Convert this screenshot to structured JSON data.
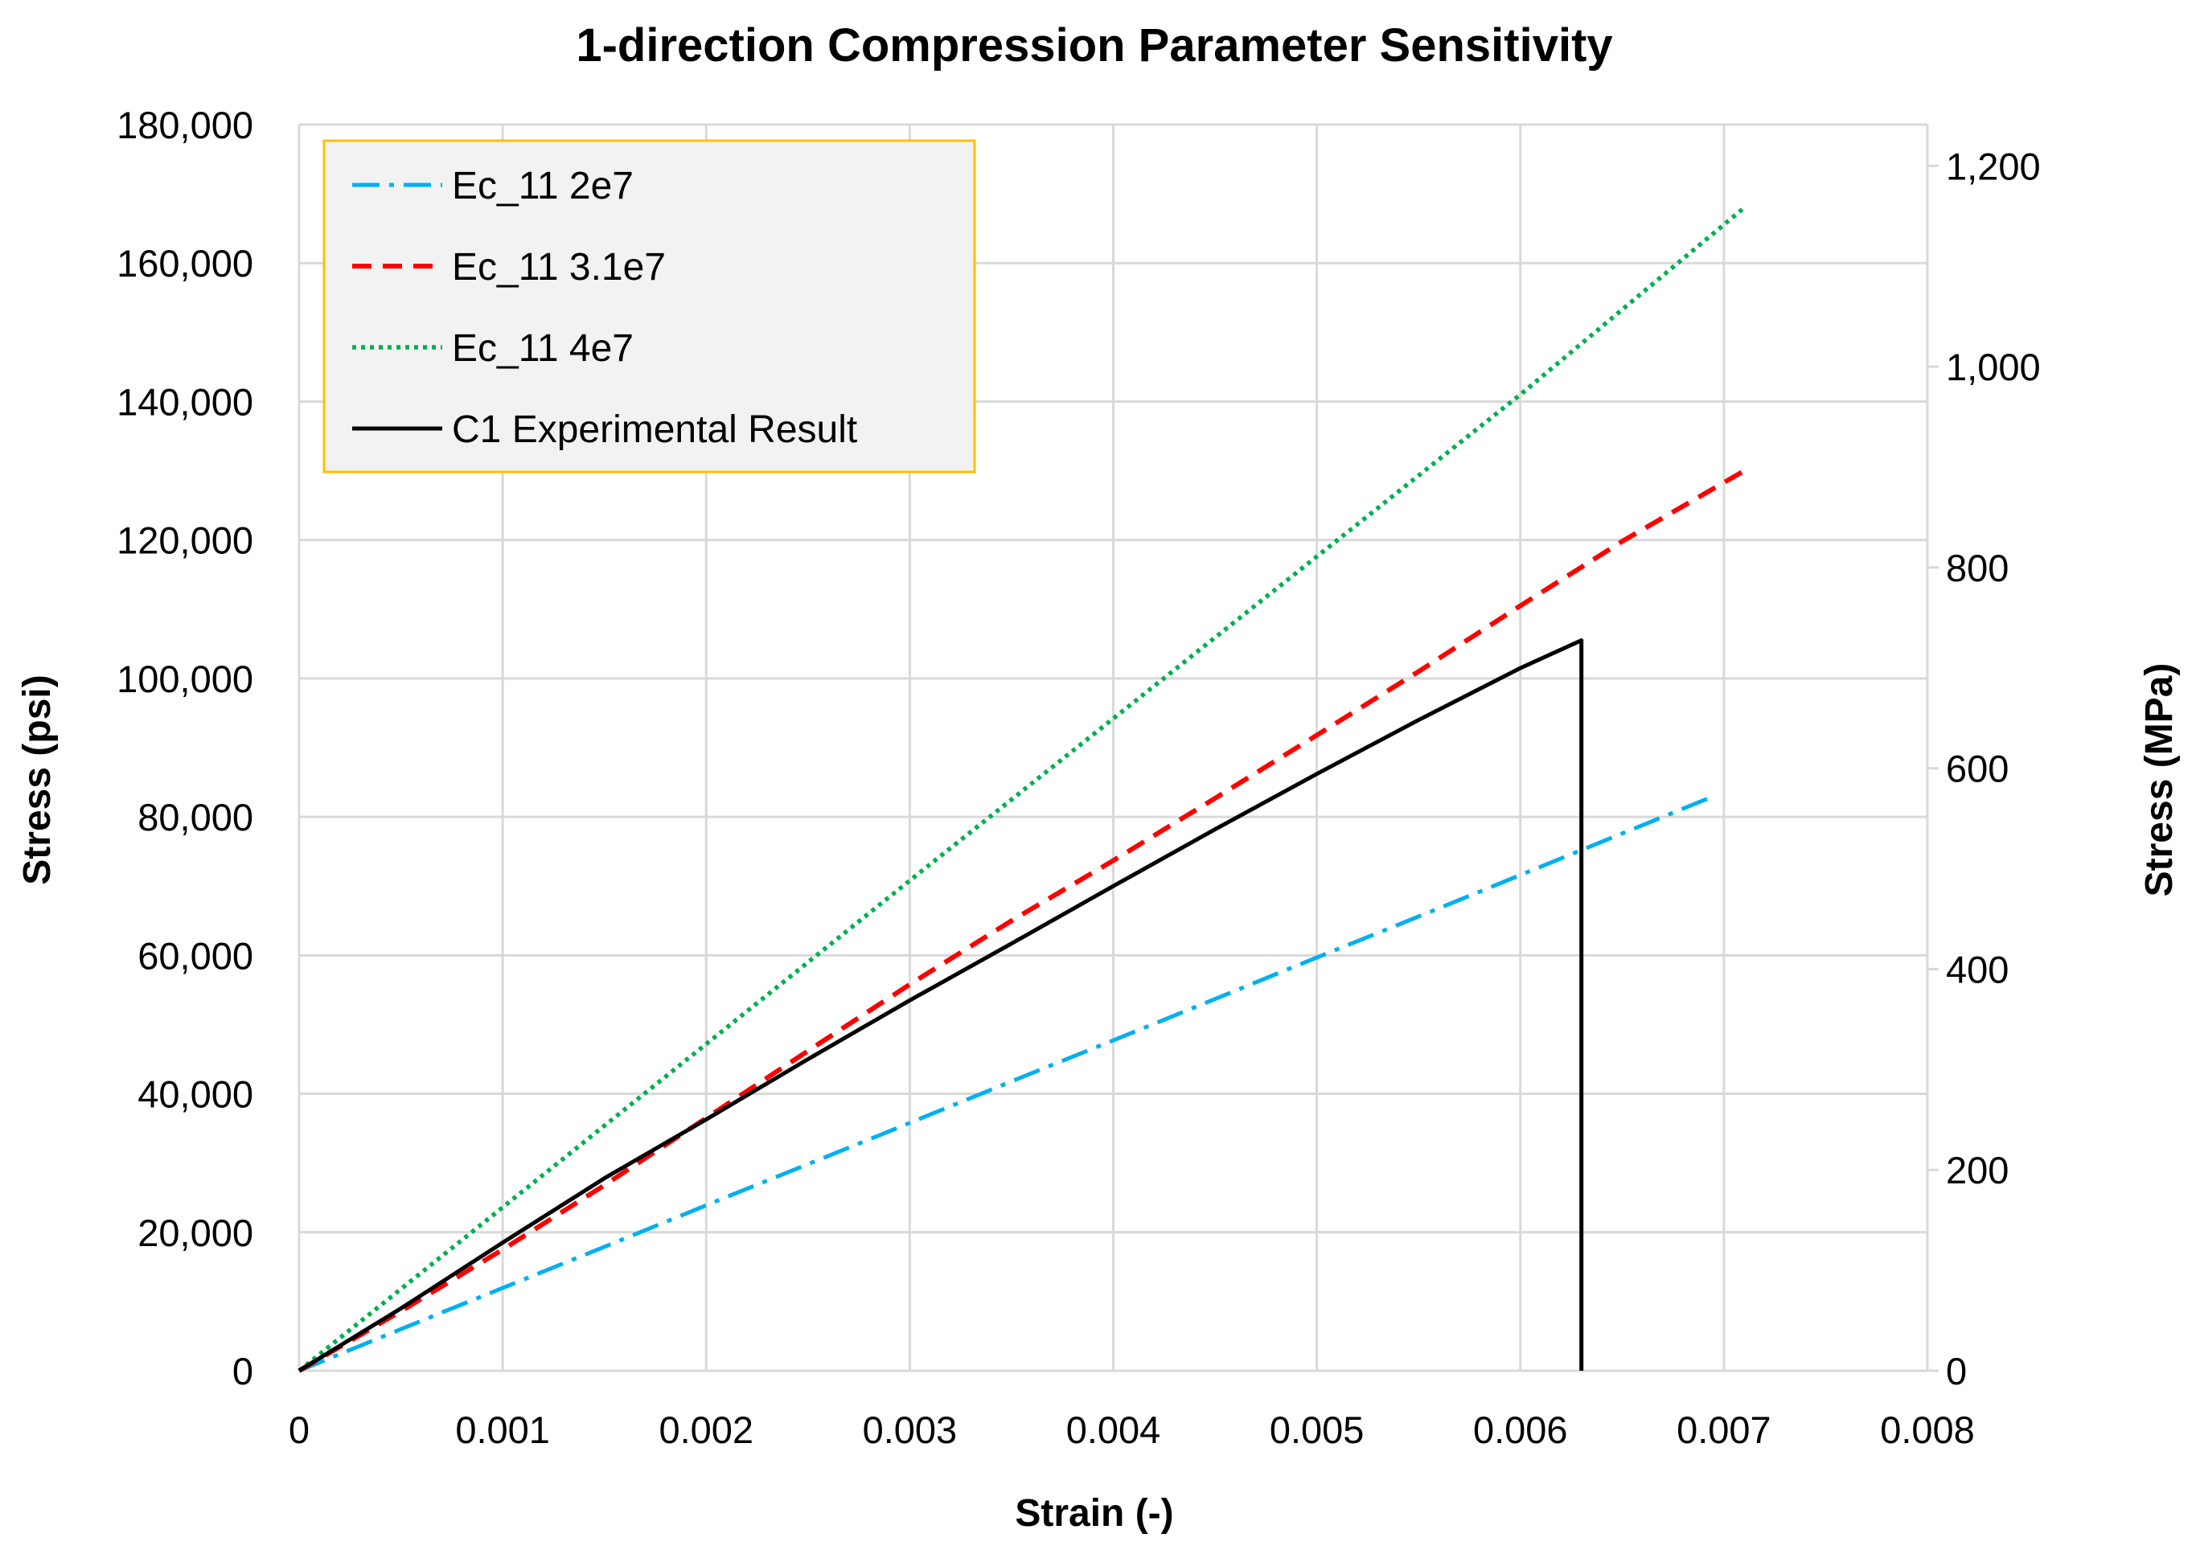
{
  "chart_data": {
    "type": "line",
    "title": "1-direction Compression Parameter Sensitivity",
    "xlabel": "Strain (-)",
    "ylabel": "Stress (psi)",
    "y2label": "Stress (MPa)",
    "xlim": [
      0,
      0.008
    ],
    "ylim": [
      0,
      180000
    ],
    "y2lim": [
      0,
      1241.06
    ],
    "x_ticks": [
      0,
      0.001,
      0.002,
      0.003,
      0.004,
      0.005,
      0.006,
      0.007,
      0.008
    ],
    "x_tick_labels": [
      "0",
      "0.001",
      "0.002",
      "0.003",
      "0.004",
      "0.005",
      "0.006",
      "0.007",
      "0.008"
    ],
    "y_ticks": [
      0,
      20000,
      40000,
      60000,
      80000,
      100000,
      120000,
      140000,
      160000,
      180000
    ],
    "y_tick_labels": [
      "0",
      "20,000",
      "40,000",
      "60,000",
      "80,000",
      "100,000",
      "120,000",
      "140,000",
      "160,000",
      "180,000"
    ],
    "y2_ticks": [
      0,
      200,
      400,
      600,
      800,
      1000,
      1200
    ],
    "y2_tick_labels": [
      "0",
      "200",
      "400",
      "600",
      "800",
      "1,000",
      "1,200"
    ],
    "grid": true,
    "legend_position": "top-left",
    "series": [
      {
        "name": "Ec_11 2e7",
        "color": "#00b0f0",
        "style": "dash-dot",
        "x": [
          0,
          0.0007,
          0.0014,
          0.0021,
          0.0028,
          0.0035,
          0.0042,
          0.0049,
          0.0056,
          0.0063,
          0.00695
        ],
        "y": [
          0,
          8400,
          16700,
          25100,
          33400,
          41800,
          50100,
          58500,
          66800,
          75200,
          83000
        ]
      },
      {
        "name": "Ec_11 3.1e7",
        "color": "#ff0000",
        "style": "dashed",
        "x": [
          0,
          0.0005,
          0.001,
          0.0015,
          0.002,
          0.0025,
          0.003,
          0.0035,
          0.004,
          0.0045,
          0.005,
          0.0055,
          0.006,
          0.0065,
          0.0071
        ],
        "y": [
          0,
          8600,
          17500,
          26800,
          36500,
          46200,
          55800,
          65000,
          73700,
          82700,
          91800,
          101000,
          110500,
          119800,
          130000
        ]
      },
      {
        "name": "Ec_11 4e7",
        "color": "#00b050",
        "style": "dotted",
        "x": [
          0,
          0.001,
          0.002,
          0.003,
          0.004,
          0.005,
          0.006,
          0.0071
        ],
        "y": [
          0,
          23600,
          47200,
          70800,
          94200,
          117600,
          141000,
          168000
        ]
      },
      {
        "name": "C1 Experimental Result",
        "color": "#000000",
        "style": "solid",
        "x": [
          0,
          0.0005,
          0.001,
          0.0015,
          0.002,
          0.0025,
          0.003,
          0.0035,
          0.004,
          0.0045,
          0.005,
          0.0055,
          0.006,
          0.0063,
          0.0063
        ],
        "y": [
          0,
          9000,
          18500,
          27800,
          36300,
          45000,
          53500,
          61700,
          70000,
          78200,
          86200,
          94000,
          101500,
          105500,
          0
        ]
      }
    ]
  }
}
